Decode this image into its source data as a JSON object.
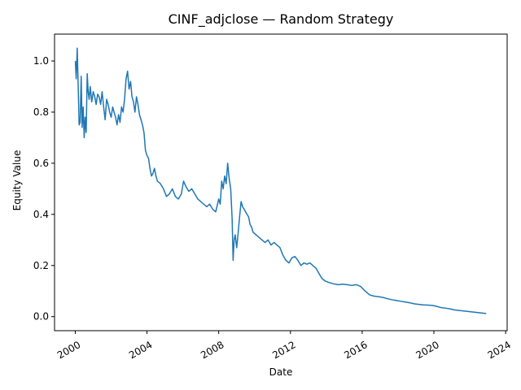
{
  "chart_data": {
    "type": "line",
    "title": "CINF_adjclose — Random Strategy",
    "xlabel": "Date",
    "ylabel": "Equity Value",
    "x_axis": "date",
    "xlim": [
      "1998-11-05",
      "2024-02-01"
    ],
    "ylim": [
      -0.055,
      1.105
    ],
    "xticks": [
      "2000",
      "2004",
      "2008",
      "2012",
      "2016",
      "2020",
      "2024"
    ],
    "yticks": [
      "0.0",
      "0.2",
      "0.4",
      "0.6",
      "0.8",
      "1.0"
    ],
    "grid": false,
    "legend": "none",
    "line_color": "#1f77b4",
    "series": [
      {
        "x": [
          "2000-01-03",
          "2000-01-20",
          "2000-02-10",
          "2000-03-01",
          "2000-03-20",
          "2000-04-10",
          "2000-05-01",
          "2000-05-20",
          "2000-06-10",
          "2000-07-01",
          "2000-07-20",
          "2000-08-10",
          "2000-09-01",
          "2000-09-20",
          "2000-10-10",
          "2000-11-01",
          "2000-12-01",
          "2001-01-01",
          "2001-02-01",
          "2001-03-01",
          "2001-04-01",
          "2001-05-01",
          "2001-06-01",
          "2001-07-01",
          "2001-08-01",
          "2001-09-01",
          "2001-10-01",
          "2001-11-01",
          "2001-12-01",
          "2002-01-01",
          "2002-02-01",
          "2002-03-01",
          "2002-04-01",
          "2002-05-01",
          "2002-06-01",
          "2002-07-01",
          "2002-08-01",
          "2002-09-01",
          "2002-10-01",
          "2002-11-01",
          "2002-12-01",
          "2003-01-01",
          "2003-02-01",
          "2003-03-01",
          "2003-04-01",
          "2003-05-01",
          "2003-06-01",
          "2003-07-01",
          "2003-08-01",
          "2003-09-01",
          "2003-10-01",
          "2003-11-01",
          "2003-12-01",
          "2004-01-01",
          "2004-02-01",
          "2004-03-01",
          "2004-04-01",
          "2004-05-01",
          "2004-06-01",
          "2004-07-01",
          "2004-08-01",
          "2004-10-01",
          "2004-12-01",
          "2005-02-01",
          "2005-04-01",
          "2005-06-01",
          "2005-08-01",
          "2005-10-01",
          "2005-12-01",
          "2006-01-15",
          "2006-03-01",
          "2006-05-01",
          "2006-07-01",
          "2006-09-01",
          "2006-11-01",
          "2007-01-01",
          "2007-03-01",
          "2007-05-01",
          "2007-07-01",
          "2007-09-01",
          "2007-11-01",
          "2008-01-01",
          "2008-02-01",
          "2008-03-01",
          "2008-04-01",
          "2008-05-01",
          "2008-06-01",
          "2008-07-01",
          "2008-08-01",
          "2008-09-01",
          "2008-10-01",
          "2008-10-20",
          "2008-11-10",
          "2008-12-01",
          "2009-01-01",
          "2009-02-01",
          "2009-03-01",
          "2009-04-01",
          "2009-05-01",
          "2009-06-01",
          "2009-07-01",
          "2009-08-01",
          "2009-09-01",
          "2009-10-01",
          "2009-11-01",
          "2009-12-01",
          "2010-02-01",
          "2010-04-01",
          "2010-06-01",
          "2010-08-01",
          "2010-10-01",
          "2010-12-01",
          "2011-02-01",
          "2011-04-01",
          "2011-06-01",
          "2011-08-01",
          "2011-10-01",
          "2011-12-01",
          "2012-02-01",
          "2012-04-01",
          "2012-06-01",
          "2012-08-01",
          "2012-10-01",
          "2012-12-01",
          "2013-02-01",
          "2013-04-01",
          "2013-06-01",
          "2013-08-01",
          "2013-10-01",
          "2013-12-01",
          "2014-03-01",
          "2014-06-01",
          "2014-09-01",
          "2014-12-01",
          "2015-03-01",
          "2015-06-01",
          "2015-09-01",
          "2015-12-01",
          "2016-03-01",
          "2016-06-01",
          "2016-09-01",
          "2016-12-01",
          "2017-03-01",
          "2017-06-01",
          "2017-09-01",
          "2017-12-01",
          "2018-03-01",
          "2018-06-01",
          "2018-09-01",
          "2018-12-01",
          "2019-03-01",
          "2019-06-01",
          "2019-09-01",
          "2019-12-01",
          "2020-03-01",
          "2020-06-01",
          "2020-09-01",
          "2020-12-01",
          "2021-03-01",
          "2021-06-01",
          "2021-09-01",
          "2021-12-01",
          "2022-03-01",
          "2022-06-01",
          "2022-09-01",
          "2022-12-01"
        ],
        "y": [
          1.0,
          0.93,
          1.05,
          0.9,
          0.75,
          0.76,
          0.94,
          0.74,
          0.82,
          0.7,
          0.78,
          0.72,
          0.95,
          0.88,
          0.85,
          0.9,
          0.84,
          0.88,
          0.86,
          0.83,
          0.87,
          0.86,
          0.83,
          0.88,
          0.82,
          0.77,
          0.85,
          0.83,
          0.8,
          0.78,
          0.82,
          0.8,
          0.78,
          0.75,
          0.79,
          0.76,
          0.82,
          0.8,
          0.85,
          0.93,
          0.96,
          0.89,
          0.92,
          0.86,
          0.84,
          0.8,
          0.86,
          0.83,
          0.79,
          0.77,
          0.75,
          0.72,
          0.65,
          0.63,
          0.62,
          0.58,
          0.55,
          0.56,
          0.58,
          0.55,
          0.53,
          0.52,
          0.5,
          0.47,
          0.48,
          0.5,
          0.47,
          0.46,
          0.48,
          0.53,
          0.51,
          0.49,
          0.5,
          0.48,
          0.46,
          0.45,
          0.44,
          0.43,
          0.44,
          0.42,
          0.41,
          0.46,
          0.44,
          0.53,
          0.5,
          0.55,
          0.52,
          0.6,
          0.54,
          0.5,
          0.38,
          0.22,
          0.3,
          0.32,
          0.27,
          0.33,
          0.39,
          0.45,
          0.43,
          0.42,
          0.41,
          0.4,
          0.39,
          0.36,
          0.35,
          0.33,
          0.32,
          0.31,
          0.3,
          0.29,
          0.3,
          0.28,
          0.29,
          0.28,
          0.27,
          0.24,
          0.22,
          0.21,
          0.23,
          0.235,
          0.22,
          0.2,
          0.21,
          0.205,
          0.21,
          0.2,
          0.19,
          0.17,
          0.15,
          0.14,
          0.133,
          0.128,
          0.125,
          0.127,
          0.125,
          0.122,
          0.125,
          0.118,
          0.1,
          0.085,
          0.08,
          0.078,
          0.075,
          0.07,
          0.066,
          0.063,
          0.06,
          0.057,
          0.054,
          0.05,
          0.048,
          0.046,
          0.045,
          0.044,
          0.04,
          0.035,
          0.033,
          0.03,
          0.026,
          0.024,
          0.022,
          0.02,
          0.018,
          0.016,
          0.014,
          0.012
        ]
      }
    ]
  }
}
